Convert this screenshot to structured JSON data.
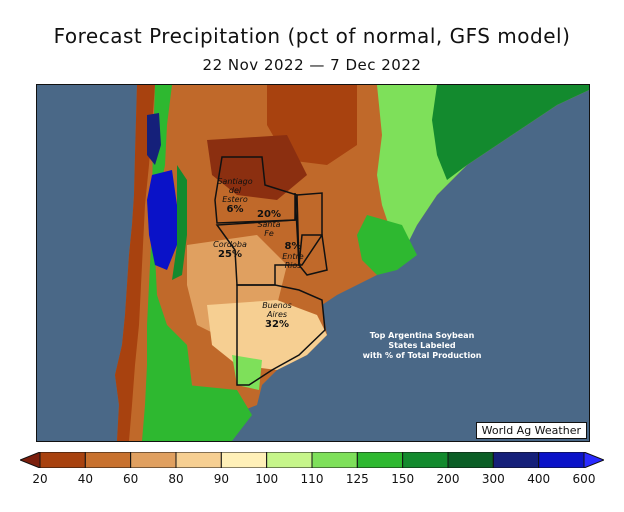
{
  "title": "Forecast Precipitation (pct of normal, GFS model)",
  "subtitle": "22 Nov 2022 — 7 Dec 2022",
  "states": [
    {
      "name": "Santiago del Estero",
      "lines": [
        "Santiago",
        "del",
        "Estero"
      ],
      "pct": "6%"
    },
    {
      "name": "Santa Fe",
      "lines": [
        "Santa",
        "Fe"
      ],
      "pct": "20%"
    },
    {
      "name": "Cordoba",
      "lines": [
        "Cordoba"
      ],
      "pct": "25%"
    },
    {
      "name": "Entre Rios",
      "lines": [
        "Entre",
        "Rios"
      ],
      "pct": "8%"
    },
    {
      "name": "Buenos Aires",
      "lines": [
        "Buenos",
        "Aires"
      ],
      "pct": "32%"
    }
  ],
  "note_lines": [
    "Top Argentina Soybean",
    "States Labeled",
    "with % of Total Production"
  ],
  "credit": "World Ag Weather",
  "legend": {
    "ticks": [
      "20",
      "40",
      "60",
      "80",
      "90",
      "100",
      "110",
      "125",
      "150",
      "200",
      "300",
      "400",
      "600"
    ],
    "colors": [
      "#7a1e0c",
      "#a8420f",
      "#c8712e",
      "#e0a060",
      "#f6cf92",
      "#fff0b8",
      "#c6f58a",
      "#7ee05a",
      "#2eb830",
      "#138a2e",
      "#0b5e26",
      "#15207a",
      "#0a12c8",
      "#2a2aff"
    ]
  }
}
